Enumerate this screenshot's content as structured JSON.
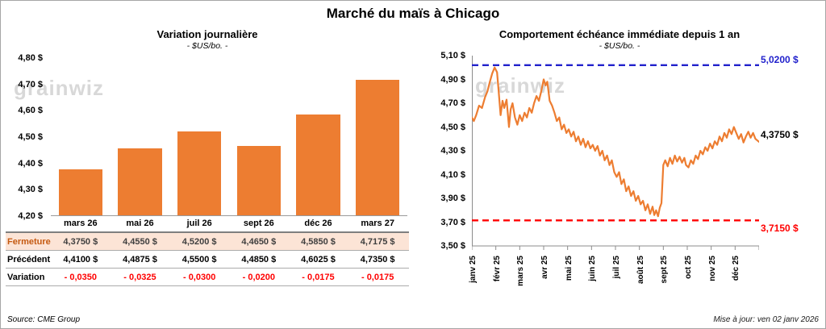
{
  "title": "Marché du maïs à Chicago",
  "watermark": "grainwiz",
  "left_panel": {
    "title": "Variation journalière",
    "subtitle": "- $US/bo. -",
    "source": "Source: CME Group",
    "table": {
      "rows": [
        {
          "label": "Fermeture",
          "values": [
            "4,3750 $",
            "4,4550 $",
            "4,5200 $",
            "4,4650 $",
            "4,5850 $",
            "4,7175 $"
          ]
        },
        {
          "label": "Précédent",
          "values": [
            "4,4100 $",
            "4,4875 $",
            "4,5500 $",
            "4,4850 $",
            "4,6025 $",
            "4,7350 $"
          ]
        },
        {
          "label": "Variation",
          "values": [
            "- 0,0350",
            "- 0,0325",
            "- 0,0300",
            "- 0,0200",
            "- 0,0175",
            "- 0,0175"
          ]
        }
      ]
    }
  },
  "right_panel": {
    "title": "Comportement échéance immédiate depuis 1 an",
    "subtitle": "- $US/bo. -",
    "updated": "Mise à jour: ven 02 janv 2026",
    "annotations": {
      "high": "5,0200 $",
      "last": "4,3750 $",
      "low": "3,7150 $"
    }
  },
  "chart_data": [
    {
      "type": "bar",
      "title": "Variation journalière",
      "subtitle": "- $US/bo. -",
      "categories": [
        "mars 26",
        "mai 26",
        "juil 26",
        "sept 26",
        "déc 26",
        "mars 27"
      ],
      "values": [
        4.375,
        4.455,
        4.52,
        4.465,
        4.585,
        4.7175
      ],
      "ylim": [
        4.2,
        4.8
      ],
      "yticks": [
        "4,80 $",
        "4,70 $",
        "4,60 $",
        "4,50 $",
        "4,40 $",
        "4,30 $",
        "4,20 $"
      ],
      "bar_color": "#ED7D31",
      "grid": false
    },
    {
      "type": "line",
      "title": "Comportement échéance immédiate depuis 1 an",
      "subtitle": "- $US/bo. -",
      "ylim": [
        3.5,
        5.1
      ],
      "yticks": [
        "5,10 $",
        "4,90 $",
        "4,70 $",
        "4,50 $",
        "4,30 $",
        "4,10 $",
        "3,90 $",
        "3,70 $",
        "3,50 $"
      ],
      "x_labels": [
        "janv 25",
        "févr 25",
        "mars 25",
        "avr 25",
        "mai 25",
        "juin 25",
        "juil 25",
        "août 25",
        "sept 25",
        "oct 25",
        "nov 25",
        "déc 25"
      ],
      "x_range_months": [
        0,
        12
      ],
      "reference_lines": [
        {
          "value": 5.02,
          "label": "5,0200 $",
          "color": "#2222CC",
          "style": "dashed"
        },
        {
          "value": 3.715,
          "label": "3,7150 $",
          "color": "#FF0000",
          "style": "dashed"
        }
      ],
      "last_value": 4.375,
      "last_label_color": "#000000",
      "series": [
        {
          "name": "échéance immédiate",
          "color": "#ED7D31",
          "points": [
            [
              0.0,
              4.58
            ],
            [
              0.08,
              4.55
            ],
            [
              0.18,
              4.6
            ],
            [
              0.3,
              4.68
            ],
            [
              0.42,
              4.66
            ],
            [
              0.55,
              4.75
            ],
            [
              0.65,
              4.8
            ],
            [
              0.75,
              4.88
            ],
            [
              0.85,
              4.95
            ],
            [
              0.95,
              5.0
            ],
            [
              1.05,
              4.96
            ],
            [
              1.12,
              4.8
            ],
            [
              1.2,
              4.6
            ],
            [
              1.28,
              4.72
            ],
            [
              1.35,
              4.66
            ],
            [
              1.45,
              4.73
            ],
            [
              1.55,
              4.5
            ],
            [
              1.62,
              4.65
            ],
            [
              1.7,
              4.7
            ],
            [
              1.8,
              4.58
            ],
            [
              1.9,
              4.52
            ],
            [
              2.0,
              4.6
            ],
            [
              2.1,
              4.55
            ],
            [
              2.2,
              4.62
            ],
            [
              2.3,
              4.58
            ],
            [
              2.4,
              4.66
            ],
            [
              2.5,
              4.62
            ],
            [
              2.6,
              4.7
            ],
            [
              2.7,
              4.76
            ],
            [
              2.8,
              4.72
            ],
            [
              2.9,
              4.8
            ],
            [
              3.0,
              4.9
            ],
            [
              3.08,
              4.85
            ],
            [
              3.15,
              4.88
            ],
            [
              3.25,
              4.72
            ],
            [
              3.35,
              4.68
            ],
            [
              3.45,
              4.62
            ],
            [
              3.55,
              4.55
            ],
            [
              3.65,
              4.58
            ],
            [
              3.75,
              4.48
            ],
            [
              3.85,
              4.52
            ],
            [
              3.95,
              4.45
            ],
            [
              4.05,
              4.48
            ],
            [
              4.15,
              4.42
            ],
            [
              4.25,
              4.46
            ],
            [
              4.35,
              4.38
            ],
            [
              4.45,
              4.42
            ],
            [
              4.55,
              4.35
            ],
            [
              4.65,
              4.4
            ],
            [
              4.75,
              4.33
            ],
            [
              4.85,
              4.38
            ],
            [
              4.95,
              4.32
            ],
            [
              5.05,
              4.35
            ],
            [
              5.15,
              4.3
            ],
            [
              5.25,
              4.34
            ],
            [
              5.35,
              4.26
            ],
            [
              5.45,
              4.3
            ],
            [
              5.55,
              4.22
            ],
            [
              5.65,
              4.26
            ],
            [
              5.75,
              4.18
            ],
            [
              5.85,
              4.22
            ],
            [
              5.95,
              4.12
            ],
            [
              6.05,
              4.08
            ],
            [
              6.15,
              4.12
            ],
            [
              6.25,
              4.02
            ],
            [
              6.35,
              4.06
            ],
            [
              6.45,
              3.96
            ],
            [
              6.55,
              4.0
            ],
            [
              6.65,
              3.92
            ],
            [
              6.75,
              3.96
            ],
            [
              6.85,
              3.88
            ],
            [
              6.95,
              3.92
            ],
            [
              7.05,
              3.85
            ],
            [
              7.15,
              3.88
            ],
            [
              7.25,
              3.8
            ],
            [
              7.35,
              3.85
            ],
            [
              7.45,
              3.77
            ],
            [
              7.55,
              3.83
            ],
            [
              7.62,
              3.76
            ],
            [
              7.7,
              3.8
            ],
            [
              7.78,
              3.75
            ],
            [
              7.85,
              3.82
            ],
            [
              7.92,
              3.86
            ],
            [
              8.0,
              4.18
            ],
            [
              8.08,
              4.22
            ],
            [
              8.18,
              4.17
            ],
            [
              8.28,
              4.24
            ],
            [
              8.38,
              4.19
            ],
            [
              8.48,
              4.26
            ],
            [
              8.58,
              4.21
            ],
            [
              8.68,
              4.25
            ],
            [
              8.78,
              4.2
            ],
            [
              8.88,
              4.24
            ],
            [
              8.95,
              4.18
            ],
            [
              9.05,
              4.16
            ],
            [
              9.15,
              4.22
            ],
            [
              9.25,
              4.19
            ],
            [
              9.35,
              4.26
            ],
            [
              9.45,
              4.23
            ],
            [
              9.55,
              4.3
            ],
            [
              9.65,
              4.27
            ],
            [
              9.75,
              4.33
            ],
            [
              9.85,
              4.3
            ],
            [
              9.95,
              4.36
            ],
            [
              10.05,
              4.32
            ],
            [
              10.15,
              4.38
            ],
            [
              10.25,
              4.35
            ],
            [
              10.35,
              4.42
            ],
            [
              10.45,
              4.38
            ],
            [
              10.55,
              4.45
            ],
            [
              10.65,
              4.41
            ],
            [
              10.75,
              4.48
            ],
            [
              10.85,
              4.44
            ],
            [
              10.95,
              4.5
            ],
            [
              11.05,
              4.45
            ],
            [
              11.15,
              4.4
            ],
            [
              11.25,
              4.44
            ],
            [
              11.35,
              4.37
            ],
            [
              11.45,
              4.42
            ],
            [
              11.55,
              4.46
            ],
            [
              11.65,
              4.41
            ],
            [
              11.75,
              4.45
            ],
            [
              11.85,
              4.4
            ],
            [
              12.0,
              4.375
            ]
          ]
        }
      ]
    }
  ]
}
